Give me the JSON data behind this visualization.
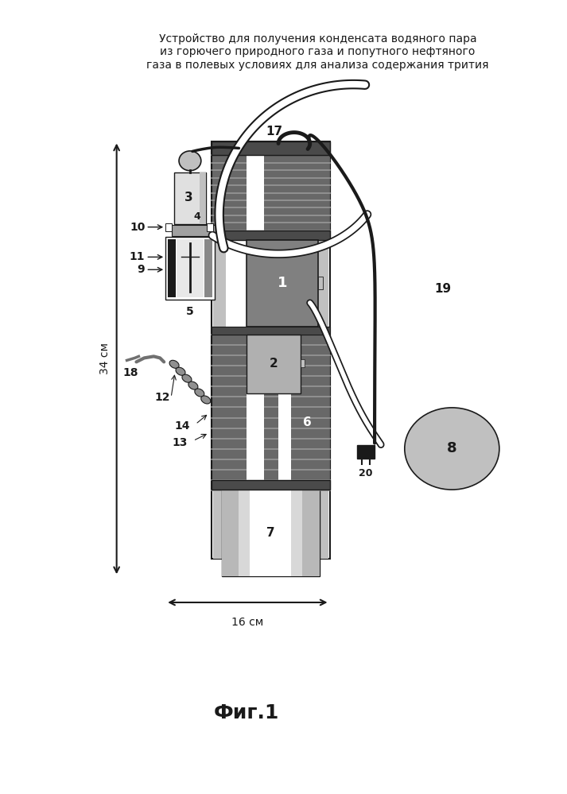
{
  "title_line1": "Устройство для получения конденсата водяного пара",
  "title_line2": "из горючего природного газа и попутного нефтяного",
  "title_line3": "газа в полевых условиях для анализа содержания трития",
  "fig_label": "Фиг.1",
  "dim_vertical": "34 см",
  "dim_horizontal": "16 см",
  "bg": "#ffffff",
  "c_black": "#1a1a1a",
  "c_white": "#ffffff",
  "c_dgray": "#4a4a4a",
  "c_mgray": "#808080",
  "c_lgray": "#c0c0c0",
  "c_vlgray": "#e0e0e0",
  "c_coil": "#686868",
  "c_coil_line": "#a0a0a0",
  "c_box1": "#808080",
  "c_box2": "#b0b0b0",
  "c_box3": "#c8c8c8",
  "c_col_bg": "#f0f0f0",
  "c_strip": "#c0c0c0"
}
